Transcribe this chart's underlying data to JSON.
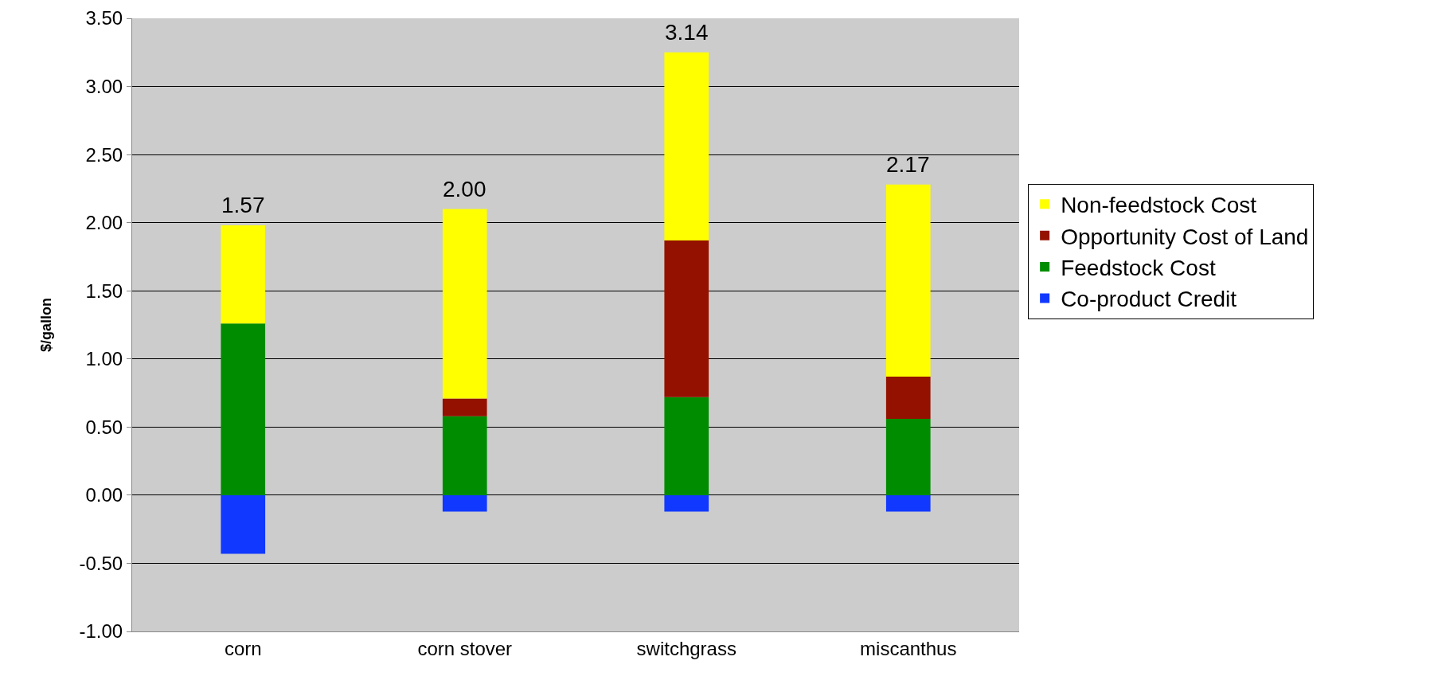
{
  "chart_data": {
    "type": "bar",
    "stacked": true,
    "ylabel": "$/gallon",
    "categories": [
      "corn",
      "corn stover",
      "switchgrass",
      "miscanthus"
    ],
    "series": [
      {
        "name": "Co-product Credit",
        "color": "#1038ff",
        "values": [
          -0.43,
          -0.12,
          -0.12,
          -0.12
        ]
      },
      {
        "name": "Feedstock Cost",
        "color": "#008c00",
        "values": [
          1.26,
          0.58,
          0.72,
          0.56
        ]
      },
      {
        "name": "Opportunity Cost of Land",
        "color": "#941100",
        "values": [
          null,
          0.13,
          1.15,
          0.31
        ]
      },
      {
        "name": "Non-feedstock Cost",
        "color": "#ffff00",
        "values": [
          0.72,
          1.39,
          1.38,
          1.41
        ]
      }
    ],
    "totals": [
      "1.57",
      "2.00",
      "3.14",
      "2.17"
    ],
    "ylim": [
      -1,
      3.5
    ],
    "yticks": [
      {
        "value": -1,
        "label": "-1.00"
      },
      {
        "value": -0.5,
        "label": "-0.50"
      },
      {
        "value": 0,
        "label": "0.00"
      },
      {
        "value": 0.5,
        "label": "0.50"
      },
      {
        "value": 1,
        "label": "1.00"
      },
      {
        "value": 1.5,
        "label": "1.50"
      },
      {
        "value": 2,
        "label": "2.00"
      },
      {
        "value": 2.5,
        "label": "2.50"
      },
      {
        "value": 3,
        "label": "3.00"
      },
      {
        "value": 3.5,
        "label": "3.50"
      }
    ],
    "grid": "y",
    "legend": "right"
  }
}
